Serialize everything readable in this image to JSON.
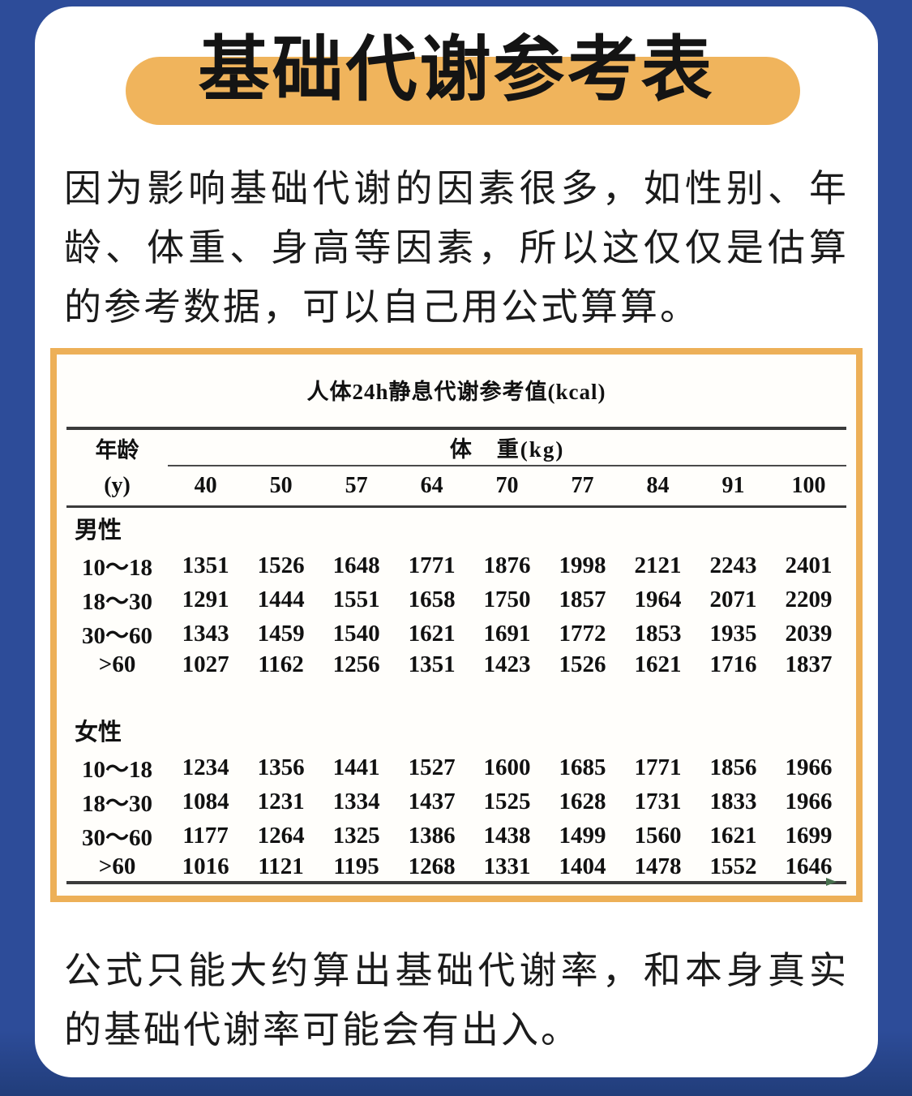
{
  "colors": {
    "background_blue": "#2d4c99",
    "background_blue_dark": "#213d7a",
    "card_white": "#ffffff",
    "title_pill_orange": "#f0b45c",
    "table_border_orange": "#edb058",
    "text_black": "#1b1b1b",
    "table_rule_dark": "#3b3b3b",
    "corner_arrow_green": "#49714f"
  },
  "title": "基础代谢参考表",
  "intro_text": "因为影响基础代谢的因素很多，如性别、年龄、体重、身高等因素，所以这仅仅是估算的参考数据，可以自己用公式算算。",
  "footer_text": "公式只能大约算出基础代谢率，和本身真实的基础代谢率可能会有出入。",
  "icons": {
    "table_corner_arrow": "small-right-triangle"
  },
  "ref_table": {
    "title": "人体24h静息代谢参考值(kcal)",
    "age_header": "年龄",
    "age_unit": "(y)",
    "weight_header": "体　重(kg)",
    "weights": [
      "40",
      "50",
      "57",
      "64",
      "70",
      "77",
      "84",
      "91",
      "100"
    ],
    "sections": [
      {
        "id": "male",
        "label": "男性",
        "rows": [
          {
            "age": "10～18",
            "values": [
              "1351",
              "1526",
              "1648",
              "1771",
              "1876",
              "1998",
              "2121",
              "2243",
              "2401"
            ]
          },
          {
            "age": "18～30",
            "values": [
              "1291",
              "1444",
              "1551",
              "1658",
              "1750",
              "1857",
              "1964",
              "2071",
              "2209"
            ]
          },
          {
            "age": "30～60",
            "values": [
              "1343",
              "1459",
              "1540",
              "1621",
              "1691",
              "1772",
              "1853",
              "1935",
              "2039"
            ]
          },
          {
            "age": ">60",
            "values": [
              "1027",
              "1162",
              "1256",
              "1351",
              "1423",
              "1526",
              "1621",
              "1716",
              "1837"
            ]
          }
        ]
      },
      {
        "id": "female",
        "label": "女性",
        "rows": [
          {
            "age": "10～18",
            "values": [
              "1234",
              "1356",
              "1441",
              "1527",
              "1600",
              "1685",
              "1771",
              "1856",
              "1966"
            ]
          },
          {
            "age": "18～30",
            "values": [
              "1084",
              "1231",
              "1334",
              "1437",
              "1525",
              "1628",
              "1731",
              "1833",
              "1966"
            ]
          },
          {
            "age": "30～60",
            "values": [
              "1177",
              "1264",
              "1325",
              "1386",
              "1438",
              "1499",
              "1560",
              "1621",
              "1699"
            ]
          },
          {
            "age": ">60",
            "values": [
              "1016",
              "1121",
              "1195",
              "1268",
              "1331",
              "1404",
              "1478",
              "1552",
              "1646"
            ]
          }
        ]
      }
    ]
  }
}
